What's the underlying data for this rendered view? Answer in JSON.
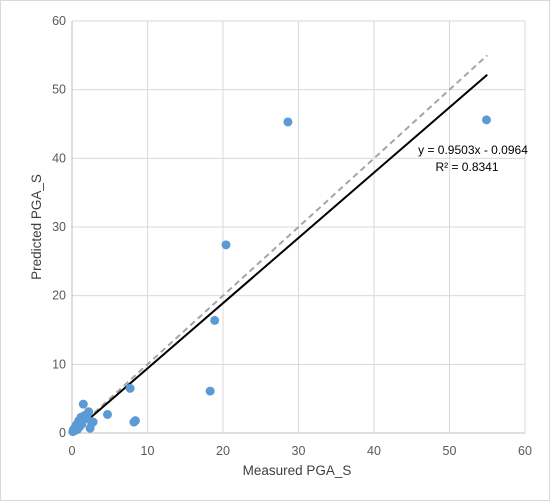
{
  "chart_data": {
    "type": "scatter",
    "title": "",
    "xlabel": "Measured PGA_S",
    "ylabel": "Predicted PGA_S",
    "xlim": [
      0,
      60
    ],
    "ylim": [
      0,
      60
    ],
    "xticks": [
      0,
      10,
      20,
      30,
      40,
      50,
      60
    ],
    "yticks": [
      0,
      10,
      20,
      30,
      40,
      50,
      60
    ],
    "grid": true,
    "legend": "none",
    "colors": {
      "points": "#5b9bd5",
      "fit_line": "#000000",
      "identity_line": "#a5a5a5",
      "grid": "#d9d9d9",
      "axis": "#bfbfbf"
    },
    "series": [
      {
        "x": [
          0.1,
          0.2,
          0.3,
          0.4,
          0.5,
          0.6,
          0.7,
          0.8,
          0.9,
          1.0,
          1.1,
          1.2,
          1.3,
          1.5,
          1.6,
          1.8,
          2.0,
          2.2,
          2.4,
          2.6,
          2.8,
          4.7,
          7.7,
          8.2,
          8.4,
          18.3,
          18.9,
          20.4,
          28.6,
          54.9
        ],
        "y": [
          0.2,
          0.5,
          0.3,
          0.8,
          1.0,
          1.2,
          0.5,
          1.5,
          1.8,
          0.9,
          2.0,
          2.3,
          1.3,
          4.2,
          2.5,
          2.6,
          2.2,
          3.1,
          0.7,
          1.5,
          1.6,
          2.7,
          6.5,
          1.6,
          1.8,
          6.1,
          16.4,
          27.4,
          45.3,
          45.6
        ]
      }
    ],
    "trendline": {
      "slope": 0.9503,
      "intercept": -0.0964,
      "equation": "y = 0.9503x - 0.0964",
      "r_squared": "R² = 0.8341"
    },
    "reference_line": {
      "slope": 1,
      "intercept": 0
    }
  }
}
